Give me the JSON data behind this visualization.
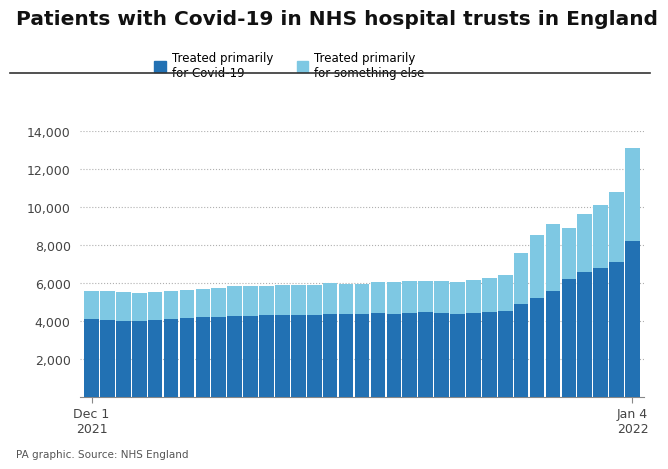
{
  "title": "Patients with Covid-19 in NHS hospital trusts in England",
  "source": "PA graphic. Source: NHS England",
  "legend_labels": [
    "Treated primarily\nfor Covid-19",
    "Treated primarily\nfor something else"
  ],
  "color_primary": "#2271b3",
  "color_secondary": "#7ec8e3",
  "background_color": "#ffffff",
  "grid_color": "#b0b0b0",
  "title_fontsize": 14.5,
  "covid_primary": [
    4100,
    4050,
    4000,
    4000,
    4050,
    4100,
    4150,
    4200,
    4200,
    4250,
    4250,
    4300,
    4300,
    4300,
    4300,
    4350,
    4350,
    4350,
    4400,
    4350,
    4400,
    4450,
    4400,
    4350,
    4400,
    4450,
    4500,
    4900,
    5200,
    5600,
    6200,
    6600,
    6800,
    7100,
    8200
  ],
  "something_else": [
    1500,
    1500,
    1500,
    1450,
    1450,
    1500,
    1500,
    1500,
    1550,
    1600,
    1600,
    1550,
    1600,
    1600,
    1600,
    1650,
    1600,
    1600,
    1650,
    1700,
    1700,
    1650,
    1700,
    1700,
    1750,
    1800,
    1900,
    2700,
    3300,
    3500,
    2700,
    3000,
    3300,
    3700,
    4900
  ],
  "xlim_labels": [
    "Dec 1\n2021",
    "Jan 4\n2022"
  ],
  "ylim": [
    0,
    14000
  ],
  "yticks": [
    2000,
    4000,
    6000,
    8000,
    10000,
    12000,
    14000
  ]
}
